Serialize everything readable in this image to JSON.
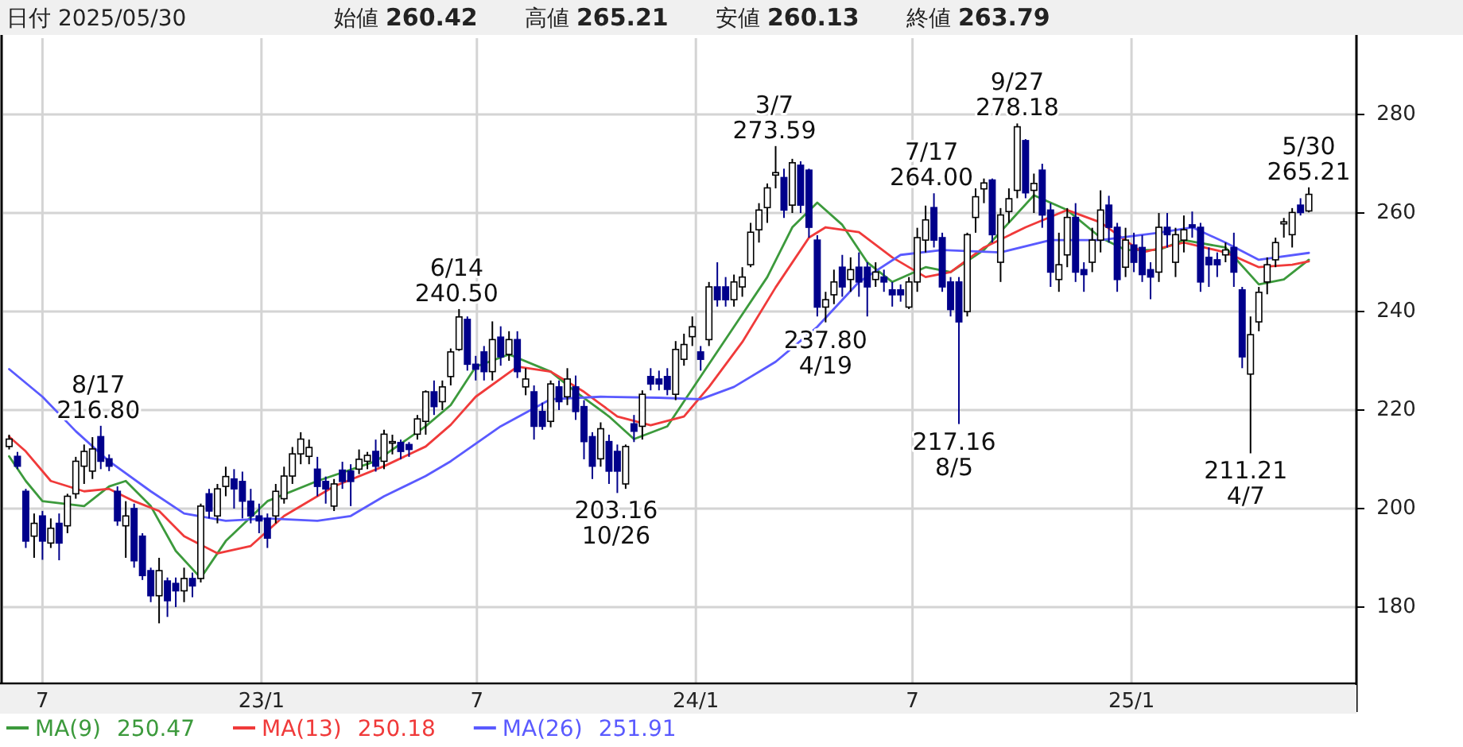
{
  "chart_data": {
    "type": "candlestick",
    "x": [
      "2022-06-03",
      "2022-06-10",
      "2022-06-17",
      "2022-06-24",
      "2022-07-01",
      "2022-07-08",
      "2022-07-15",
      "2022-07-22",
      "2022-07-29",
      "2022-08-05",
      "2022-08-12",
      "2022-08-19",
      "2022-08-26",
      "2022-09-02",
      "2022-09-09",
      "2022-09-16",
      "2022-09-23",
      "2022-09-30",
      "2022-10-07",
      "2022-10-14",
      "2022-10-21",
      "2022-10-28",
      "2022-11-04",
      "2022-11-11",
      "2022-11-18",
      "2022-11-25",
      "2022-12-02",
      "2022-12-09",
      "2022-12-16",
      "2022-12-23",
      "2022-12-30",
      "2023-01-06",
      "2023-01-13",
      "2023-01-20",
      "2023-01-27",
      "2023-02-03",
      "2023-02-10",
      "2023-02-17",
      "2023-02-24",
      "2023-03-03",
      "2023-03-10",
      "2023-03-17",
      "2023-03-24",
      "2023-03-31",
      "2023-04-07",
      "2023-04-14",
      "2023-04-21",
      "2023-04-28",
      "2023-05-05",
      "2023-05-12",
      "2023-05-19",
      "2023-05-26",
      "2023-06-02",
      "2023-06-09",
      "2023-06-16",
      "2023-06-23",
      "2023-06-30",
      "2023-07-07",
      "2023-07-14",
      "2023-07-21",
      "2023-07-28",
      "2023-08-04",
      "2023-08-11",
      "2023-08-18",
      "2023-08-25",
      "2023-09-01",
      "2023-09-08",
      "2023-09-15",
      "2023-09-22",
      "2023-09-29",
      "2023-10-06",
      "2023-10-13",
      "2023-10-20",
      "2023-10-27",
      "2023-11-03",
      "2023-11-10",
      "2023-11-17",
      "2023-11-24",
      "2023-12-01",
      "2023-12-08",
      "2023-12-15",
      "2023-12-22",
      "2023-12-29",
      "2024-01-05",
      "2024-01-12",
      "2024-01-19",
      "2024-01-26",
      "2024-02-02",
      "2024-02-09",
      "2024-02-16",
      "2024-02-23",
      "2024-03-01",
      "2024-03-08",
      "2024-03-15",
      "2024-03-22",
      "2024-03-29",
      "2024-04-05",
      "2024-04-12",
      "2024-04-19",
      "2024-04-26",
      "2024-05-03",
      "2024-05-10",
      "2024-05-17",
      "2024-05-24",
      "2024-05-31",
      "2024-06-07",
      "2024-06-14",
      "2024-06-21",
      "2024-06-28",
      "2024-07-05",
      "2024-07-12",
      "2024-07-19",
      "2024-07-26",
      "2024-08-02",
      "2024-08-09",
      "2024-08-16",
      "2024-08-23",
      "2024-08-30",
      "2024-09-06",
      "2024-09-13",
      "2024-09-20",
      "2024-09-27",
      "2024-10-04",
      "2024-10-11",
      "2024-10-18",
      "2024-10-25",
      "2024-11-01",
      "2024-11-08",
      "2024-11-15",
      "2024-11-22",
      "2024-11-29",
      "2024-12-06",
      "2024-12-13",
      "2024-12-20",
      "2024-12-27",
      "2025-01-03",
      "2025-01-10",
      "2025-01-17",
      "2025-01-24",
      "2025-01-31",
      "2025-02-07",
      "2025-02-14",
      "2025-02-21",
      "2025-02-28",
      "2025-03-07",
      "2025-03-14",
      "2025-03-21",
      "2025-03-28",
      "2025-04-04",
      "2025-04-11",
      "2025-04-18",
      "2025-04-25",
      "2025-05-02",
      "2025-05-09",
      "2025-05-16",
      "2025-05-23",
      "2025-05-30"
    ],
    "ohlc": [
      [
        212.6,
        215,
        212,
        214.1
      ],
      [
        210.6,
        211.5,
        208,
        208.6
      ],
      [
        203.5,
        204,
        192,
        193.4
      ],
      [
        194.4,
        199,
        190,
        197
      ],
      [
        198.5,
        199.5,
        189.6,
        193.4
      ],
      [
        193,
        198,
        192,
        196
      ],
      [
        197,
        199,
        189.5,
        193
      ],
      [
        196.5,
        203,
        195,
        202.5
      ],
      [
        203,
        210.5,
        202,
        209.6
      ],
      [
        208.6,
        213,
        205,
        211.6
      ],
      [
        207.6,
        214.5,
        206,
        212.1
      ],
      [
        214.6,
        216.8,
        208,
        209.6
      ],
      [
        210.1,
        211,
        207.6,
        208.6
      ],
      [
        203.5,
        204.5,
        196.5,
        197.5
      ],
      [
        196.5,
        201.5,
        190,
        198.5
      ],
      [
        200,
        201,
        188,
        189.4
      ],
      [
        194.4,
        195,
        185.5,
        186.4
      ],
      [
        187.4,
        188,
        181,
        182.3
      ],
      [
        182.3,
        190,
        176.7,
        187.4
      ],
      [
        185.3,
        186,
        178,
        181.3
      ],
      [
        184.8,
        186,
        180,
        183.3
      ],
      [
        183.3,
        188,
        181,
        185.8
      ],
      [
        185.8,
        187,
        182,
        184.3
      ],
      [
        185.8,
        201,
        185,
        200.5
      ],
      [
        203,
        204,
        198,
        199.5
      ],
      [
        198.5,
        205,
        197,
        204
      ],
      [
        204.5,
        208.5,
        202.5,
        206.5
      ],
      [
        206,
        208,
        200,
        204
      ],
      [
        205.5,
        207.5,
        198,
        201.5
      ],
      [
        201.5,
        204,
        197,
        198.5
      ],
      [
        198.5,
        201,
        195,
        197.5
      ],
      [
        198,
        199,
        192,
        194
      ],
      [
        198.5,
        205,
        197,
        203.5
      ],
      [
        202,
        208.5,
        201,
        206.6
      ],
      [
        206.6,
        212.5,
        205,
        211.1
      ],
      [
        211.1,
        215.5,
        209,
        214.1
      ],
      [
        210.6,
        214,
        209,
        212.4
      ],
      [
        208,
        210.5,
        202.5,
        204.5
      ],
      [
        205.5,
        206.5,
        201,
        204
      ],
      [
        200.5,
        206,
        199.5,
        205
      ],
      [
        207.8,
        209.5,
        204,
        205.5
      ],
      [
        207.6,
        209,
        200.5,
        205.5
      ],
      [
        208,
        212,
        207,
        210
      ],
      [
        209.6,
        211.5,
        208,
        210.8
      ],
      [
        211.6,
        214,
        207.5,
        208.6
      ],
      [
        209.6,
        216,
        208,
        215.1
      ],
      [
        213.4,
        215,
        211,
        213.6
      ],
      [
        213.4,
        214,
        210,
        211.6
      ],
      [
        213,
        213.5,
        210.5,
        212
      ],
      [
        215.1,
        219,
        214,
        218.2
      ],
      [
        217.7,
        224,
        215,
        223.7
      ],
      [
        223.7,
        226,
        219,
        220.7
      ],
      [
        221.7,
        226,
        220,
        224.7
      ],
      [
        226.8,
        232.5,
        225,
        231.8
      ],
      [
        232.3,
        240.5,
        232,
        238.9
      ],
      [
        238.4,
        239,
        228,
        229.3
      ],
      [
        229.3,
        231,
        226,
        228.3
      ],
      [
        231.8,
        233,
        226,
        227.8
      ],
      [
        227.8,
        238,
        226,
        234.3
      ],
      [
        234.8,
        237,
        229,
        230.8
      ],
      [
        231.3,
        236,
        230,
        234.3
      ],
      [
        234.3,
        236,
        226.5,
        227.8
      ],
      [
        224.7,
        228.5,
        223,
        226.3
      ],
      [
        223.7,
        225,
        214,
        216.7
      ],
      [
        219.7,
        221.5,
        216,
        216.7
      ],
      [
        217.7,
        226,
        216.5,
        225.3
      ],
      [
        224.7,
        226,
        220,
        221.7
      ],
      [
        222.7,
        228.5,
        221,
        226.3
      ],
      [
        224.7,
        227,
        218,
        219.7
      ],
      [
        220.7,
        222,
        210,
        213.6
      ],
      [
        214.6,
        215.5,
        206,
        208.6
      ],
      [
        210.1,
        217.5,
        208.5,
        216.2
      ],
      [
        213.6,
        215,
        205,
        207.6
      ],
      [
        211.6,
        213,
        203.16,
        207.6
      ],
      [
        205,
        213,
        204,
        212.6
      ],
      [
        217.2,
        219,
        213.5,
        215.7
      ],
      [
        216.7,
        224,
        214,
        223.2
      ],
      [
        226.8,
        228.5,
        224,
        225.3
      ],
      [
        226.3,
        228,
        224,
        225.3
      ],
      [
        226.8,
        228.5,
        223,
        224.2
      ],
      [
        223.2,
        234,
        222,
        232.3
      ],
      [
        230.3,
        235.5,
        229,
        233.3
      ],
      [
        234.9,
        239,
        233,
        236.9
      ],
      [
        231.8,
        233,
        228,
        230.3
      ],
      [
        234.3,
        246,
        233,
        245
      ],
      [
        245,
        250,
        241,
        242.4
      ],
      [
        245,
        247,
        241,
        242.4
      ],
      [
        242.4,
        247.5,
        241,
        246
      ],
      [
        245,
        249,
        243,
        247
      ],
      [
        249.5,
        258,
        249,
        256.1
      ],
      [
        256.6,
        262,
        254,
        260.6
      ],
      [
        261.1,
        266,
        258,
        265.1
      ],
      [
        267.7,
        273.59,
        265,
        268.2
      ],
      [
        267.2,
        269,
        259,
        260.6
      ],
      [
        261.6,
        271,
        260,
        270.2
      ],
      [
        269.7,
        270.5,
        260,
        261.6
      ],
      [
        268.7,
        269,
        255,
        257.1
      ],
      [
        254.5,
        255.5,
        239,
        240.9
      ],
      [
        240.9,
        244,
        237.8,
        242.4
      ],
      [
        243.4,
        248.5,
        241.5,
        246
      ],
      [
        249,
        251.5,
        243,
        245
      ],
      [
        246.5,
        251,
        244,
        248.5
      ],
      [
        249,
        252,
        243,
        246
      ],
      [
        249,
        250,
        239,
        245
      ],
      [
        246.5,
        250,
        245,
        248
      ],
      [
        247,
        248.5,
        244,
        246
      ],
      [
        244.4,
        246,
        241,
        243.4
      ],
      [
        244.4,
        245.5,
        242,
        243.4
      ],
      [
        240.9,
        247,
        240.5,
        246
      ],
      [
        246,
        257,
        244,
        255
      ],
      [
        254.5,
        261.5,
        252,
        258.6
      ],
      [
        261.1,
        264,
        253,
        254.5
      ],
      [
        255,
        256,
        244,
        245
      ],
      [
        246,
        247,
        239,
        240.4
      ],
      [
        246,
        247,
        217.16,
        237.9
      ],
      [
        240,
        256,
        239,
        255.6
      ],
      [
        259.1,
        265,
        256,
        263.3
      ],
      [
        264.9,
        267,
        262,
        266.1
      ],
      [
        266.7,
        267,
        254,
        255.6
      ],
      [
        250,
        261,
        246,
        259.6
      ],
      [
        260.3,
        265,
        258,
        262.9
      ],
      [
        264.6,
        278.18,
        263,
        277.5
      ],
      [
        274.7,
        275,
        263,
        264.1
      ],
      [
        264.6,
        268,
        260,
        266
      ],
      [
        268.7,
        270,
        257,
        259.6
      ],
      [
        260.6,
        262,
        245,
        248
      ],
      [
        246.5,
        256,
        244,
        249.5
      ],
      [
        251.5,
        261,
        249,
        259.1
      ],
      [
        259.1,
        262,
        246,
        248
      ],
      [
        248.5,
        250,
        244,
        247.5
      ],
      [
        250,
        257,
        248,
        254.5
      ],
      [
        254.5,
        264.6,
        252,
        260.6
      ],
      [
        261.6,
        263.5,
        254,
        257.1
      ],
      [
        257.1,
        258,
        244,
        246.5
      ],
      [
        249,
        257,
        247,
        254.5
      ],
      [
        253.5,
        256,
        248,
        250
      ],
      [
        253,
        255.5,
        246,
        247.5
      ],
      [
        248.5,
        250,
        242.5,
        247
      ],
      [
        248,
        260,
        246,
        257.1
      ],
      [
        257.1,
        260,
        253,
        255.6
      ],
      [
        250,
        257,
        247,
        255.6
      ],
      [
        254.5,
        259.5,
        252,
        256.6
      ],
      [
        257.6,
        260.3,
        255,
        257.1
      ],
      [
        257.1,
        258,
        244,
        246
      ],
      [
        251,
        253,
        245,
        249.5
      ],
      [
        250.5,
        252,
        247,
        249.5
      ],
      [
        251.5,
        254,
        250,
        252.5
      ],
      [
        253,
        256,
        245,
        248
      ],
      [
        244.4,
        245,
        228.5,
        230.8
      ],
      [
        227.3,
        239,
        211.21,
        235.3
      ],
      [
        237.9,
        245,
        236,
        243.9
      ],
      [
        246,
        251,
        243.5,
        249.5
      ],
      [
        250.5,
        255,
        249,
        254
      ],
      [
        257.8,
        259,
        255,
        258.2
      ],
      [
        255.6,
        261,
        253,
        260.1
      ],
      [
        261.6,
        263,
        259.5,
        260.1
      ],
      [
        260.42,
        265.21,
        260.13,
        263.79
      ]
    ],
    "colors": [
      "#ffffff",
      "#00008b",
      "#00008b",
      "#ffffff",
      "#00008b",
      "#ffffff",
      "#00008b",
      "#ffffff",
      "#ffffff",
      "#ffffff",
      "#ffffff",
      "#00008b",
      "#00008b",
      "#00008b",
      "#ffffff",
      "#00008b",
      "#00008b",
      "#00008b",
      "#ffffff",
      "#00008b",
      "#00008b",
      "#ffffff",
      "#00008b",
      "#ffffff",
      "#00008b",
      "#ffffff",
      "#ffffff",
      "#00008b",
      "#00008b",
      "#00008b",
      "#00008b",
      "#00008b",
      "#ffffff",
      "#ffffff",
      "#ffffff",
      "#ffffff",
      "#ffffff",
      "#00008b",
      "#00008b",
      "#ffffff",
      "#00008b",
      "#00008b",
      "#ffffff",
      "#ffffff",
      "#00008b",
      "#ffffff",
      "#ffffff",
      "#00008b",
      "#00008b",
      "#ffffff",
      "#ffffff",
      "#00008b",
      "#ffffff",
      "#ffffff",
      "#ffffff",
      "#00008b",
      "#00008b",
      "#00008b",
      "#ffffff",
      "#00008b",
      "#ffffff",
      "#00008b",
      "#ffffff",
      "#00008b",
      "#00008b",
      "#ffffff",
      "#00008b",
      "#ffffff",
      "#00008b",
      "#00008b",
      "#00008b",
      "#ffffff",
      "#00008b",
      "#00008b",
      "#ffffff",
      "#00008b",
      "#ffffff",
      "#00008b",
      "#00008b",
      "#00008b",
      "#ffffff",
      "#ffffff",
      "#ffffff",
      "#00008b",
      "#ffffff",
      "#00008b",
      "#00008b",
      "#ffffff",
      "#ffffff",
      "#ffffff",
      "#ffffff",
      "#ffffff",
      "#ffffff",
      "#00008b",
      "#ffffff",
      "#00008b",
      "#00008b",
      "#00008b",
      "#ffffff",
      "#ffffff",
      "#00008b",
      "#ffffff",
      "#00008b",
      "#00008b",
      "#ffffff",
      "#00008b",
      "#00008b",
      "#00008b",
      "#ffffff",
      "#ffffff",
      "#ffffff",
      "#00008b",
      "#00008b",
      "#00008b",
      "#00008b",
      "#ffffff",
      "#ffffff",
      "#ffffff",
      "#00008b",
      "#ffffff",
      "#ffffff",
      "#ffffff",
      "#00008b",
      "#ffffff",
      "#00008b",
      "#00008b",
      "#ffffff",
      "#ffffff",
      "#00008b",
      "#00008b",
      "#ffffff",
      "#ffffff",
      "#00008b",
      "#00008b",
      "#ffffff",
      "#00008b",
      "#00008b",
      "#00008b",
      "#ffffff",
      "#00008b",
      "#ffffff",
      "#ffffff",
      "#00008b",
      "#00008b",
      "#00008b",
      "#00008b",
      "#ffffff",
      "#00008b",
      "#00008b",
      "#ffffff",
      "#ffffff",
      "#ffffff",
      "#ffffff",
      "#ffffff",
      "#ffffff",
      "#00008b",
      "#ffffff"
    ],
    "series": [
      {
        "type": "line",
        "name": "MA(9)",
        "color": "#3c9a3c",
        "x": [
          "2022-06-03",
          "2022-06-17",
          "2022-07-01",
          "2022-08-05",
          "2022-08-26",
          "2022-09-09",
          "2022-09-30",
          "2022-10-21",
          "2022-11-11",
          "2022-12-02",
          "2023-01-06",
          "2023-02-17",
          "2023-04-07",
          "2023-05-19",
          "2023-06-09",
          "2023-06-30",
          "2023-07-28",
          "2023-09-01",
          "2023-09-22",
          "2023-10-20",
          "2023-11-10",
          "2023-12-08",
          "2024-01-05",
          "2024-02-02",
          "2024-03-01",
          "2024-03-22",
          "2024-04-12",
          "2024-05-03",
          "2024-05-24",
          "2024-06-14",
          "2024-07-12",
          "2024-08-02",
          "2024-08-30",
          "2024-10-11",
          "2024-11-08",
          "2024-12-06",
          "2024-12-27",
          "2025-01-24",
          "2025-02-14",
          "2025-03-21",
          "2025-04-18",
          "2025-05-09",
          "2025-05-30"
        ],
        "values": [
          210.6,
          205.6,
          201.5,
          200.5,
          204.5,
          205.6,
          200.5,
          191.4,
          185.9,
          193.4,
          201.5,
          205.6,
          209.6,
          216.7,
          221,
          228.8,
          231.3,
          227.8,
          223.7,
          218.7,
          214.1,
          216.7,
          226.8,
          236.9,
          247,
          257.1,
          262.1,
          257.6,
          250,
          246,
          249,
          248,
          252.5,
          263.6,
          260.6,
          255,
          252.5,
          252.5,
          254.5,
          253,
          245.5,
          246.5,
          250.5
        ]
      },
      {
        "type": "line",
        "name": "MA(13)",
        "color": "#f03a3a",
        "x": [
          "2022-06-03",
          "2022-06-17",
          "2022-07-08",
          "2022-08-05",
          "2022-08-26",
          "2022-09-16",
          "2022-10-07",
          "2022-10-28",
          "2022-11-25",
          "2022-12-23",
          "2023-01-20",
          "2023-03-03",
          "2023-04-14",
          "2023-05-19",
          "2023-06-09",
          "2023-06-30",
          "2023-08-04",
          "2023-09-01",
          "2023-09-29",
          "2023-10-27",
          "2023-11-24",
          "2023-12-22",
          "2024-01-12",
          "2024-02-09",
          "2024-03-08",
          "2024-04-05",
          "2024-04-19",
          "2024-05-17",
          "2024-06-14",
          "2024-07-12",
          "2024-08-02",
          "2024-08-30",
          "2024-10-04",
          "2024-11-08",
          "2024-12-06",
          "2025-01-10",
          "2025-02-14",
          "2025-03-21",
          "2025-04-18",
          "2025-05-16",
          "2025-05-30"
        ],
        "values": [
          214.6,
          211.6,
          205.6,
          203.5,
          204,
          201.5,
          199.5,
          194.4,
          190.9,
          192.4,
          198.5,
          204.5,
          208.6,
          212.6,
          217,
          222.7,
          228.8,
          227.8,
          223.7,
          218.7,
          216.9,
          218.7,
          224.7,
          233.8,
          244.9,
          255,
          257.1,
          256.1,
          251,
          247,
          248,
          253,
          257.1,
          260.6,
          258.1,
          252,
          254,
          252,
          249,
          249.5,
          250.2
        ]
      },
      {
        "type": "line",
        "name": "MA(26)",
        "color": "#5a5aff",
        "x": [
          "2022-06-03",
          "2022-07-01",
          "2022-07-29",
          "2022-08-26",
          "2022-09-30",
          "2022-10-28",
          "2022-12-02",
          "2023-01-06",
          "2023-02-17",
          "2023-03-17",
          "2023-04-14",
          "2023-05-19",
          "2023-06-09",
          "2023-07-21",
          "2023-09-01",
          "2023-10-13",
          "2023-12-01",
          "2024-01-05",
          "2024-02-02",
          "2024-03-08",
          "2024-04-12",
          "2024-05-17",
          "2024-06-21",
          "2024-07-26",
          "2024-09-13",
          "2024-10-25",
          "2024-12-06",
          "2025-01-24",
          "2025-02-21",
          "2025-03-21",
          "2025-04-18",
          "2025-05-30"
        ],
        "values": [
          228.3,
          222.7,
          215.7,
          209.6,
          203.5,
          199,
          197.5,
          198,
          197.5,
          198.5,
          202.5,
          206.6,
          209.6,
          216.7,
          222.2,
          222.7,
          222.5,
          222.2,
          224.7,
          229.8,
          236.9,
          246,
          251.5,
          252.5,
          252,
          254.5,
          254.5,
          256,
          257.1,
          254,
          250.5,
          251.9
        ]
      }
    ],
    "xlim": [
      "2022-05-29",
      "2025-07-09"
    ],
    "xticks": [
      {
        "value": "2022-07-01",
        "label": "7"
      },
      {
        "value": "2023-01-01",
        "label": "23/1"
      },
      {
        "value": "2023-07-01",
        "label": "7"
      },
      {
        "value": "2024-01-01",
        "label": "24/1"
      },
      {
        "value": "2024-07-01",
        "label": "7"
      },
      {
        "value": "2025-01-01",
        "label": "25/1"
      }
    ],
    "ylim": [
      164.5,
      295.5
    ],
    "yticks": [
      180,
      200,
      220,
      240,
      260,
      280
    ],
    "grid": true,
    "legend": "bottom left",
    "annotations": [
      "日付 2025/05/30",
      "始値 260.42",
      "高値 265.21",
      "安値 260.13",
      "終値 263.79",
      "250.47",
      "250.18",
      "251.91",
      {
        "text": "8/17\n216.80",
        "x": "2022-08-17",
        "y": 216.8
      },
      {
        "text": "6/14\n240.50",
        "x": "2023-06-14",
        "y": 240.5
      },
      {
        "text": "203.16\n10/26",
        "x": "2023-10-26",
        "y": 203.16
      },
      {
        "text": "3/7\n273.59",
        "x": "2024-03-07",
        "y": 273.59
      },
      {
        "text": "237.80\n4/19",
        "x": "2024-04-19",
        "y": 237.8
      },
      {
        "text": "7/17\n264.00",
        "x": "2024-07-17",
        "y": 264.0
      },
      {
        "text": "217.16\n8/5",
        "x": "2024-08-05",
        "y": 217.16
      },
      {
        "text": "9/27\n278.18",
        "x": "2024-09-27",
        "y": 278.18
      },
      {
        "text": "211.21\n4/7",
        "x": "2025-04-07",
        "y": 211.21
      },
      {
        "text": "5/30\n265.21",
        "x": "2025-05-30",
        "y": 265.21
      }
    ]
  }
}
